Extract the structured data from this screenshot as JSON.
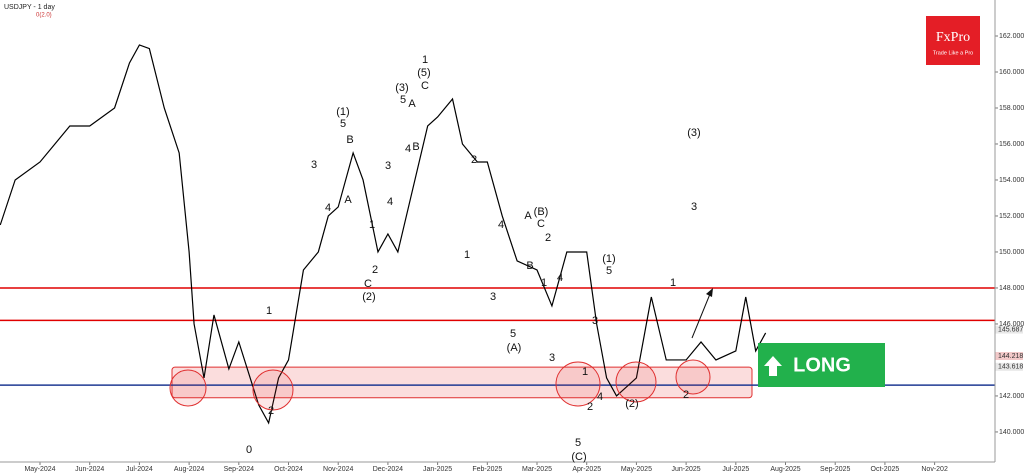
{
  "header": {
    "symbol": "USDJPY - 1 day",
    "indicator": "0(2.0)"
  },
  "logo": {
    "brand": "FxPro",
    "tagline": "Trade Like a Pro"
  },
  "signal": "LONG",
  "annotations": [
    "(1)",
    "5",
    "B",
    "3",
    "A",
    "4",
    "C",
    "(2)",
    "2",
    "1",
    "3",
    "4",
    "1",
    "(5)",
    "C",
    "(3)",
    "5",
    "A",
    "B",
    "4",
    "2",
    "4",
    "(B)",
    "C",
    "2",
    "A",
    "B",
    "3",
    "5",
    "(A)",
    "1",
    "1",
    "4",
    "3",
    "(1)",
    "5",
    "3",
    "1",
    "2",
    "4",
    "5",
    "(C)",
    "(2)",
    "1",
    "2",
    "(3)",
    "3",
    "1",
    "2",
    "0"
  ],
  "chart_data": {
    "type": "line",
    "color": "#000000",
    "x": [
      -0.8,
      -0.5,
      0,
      0.3,
      0.6,
      1.0,
      1.5,
      1.8,
      2.0,
      2.2,
      2.5,
      2.8,
      3.0,
      3.1,
      3.3,
      3.5,
      3.8,
      4.0,
      4.4,
      4.6,
      4.8,
      5.0,
      5.3,
      5.6,
      5.8,
      6.0,
      6.3,
      6.5,
      6.8,
      7.0,
      7.2,
      7.5,
      7.8,
      8.0,
      8.3,
      8.5,
      8.8,
      9.0,
      9.3,
      9.6,
      10.0,
      10.3,
      10.6,
      11.0,
      11.2,
      11.4,
      11.6,
      12.0,
      12.3,
      12.6,
      13.0,
      13.3,
      13.6,
      14.0,
      14.2,
      14.4,
      14.6
    ],
    "values": [
      151.5,
      154,
      155,
      156,
      157,
      157,
      158,
      160.5,
      161.5,
      161.3,
      158,
      155.5,
      150,
      146,
      143,
      146.5,
      143.5,
      145,
      141.5,
      140.5,
      143,
      144,
      149,
      150,
      152,
      152.5,
      155.5,
      154,
      150,
      151,
      150,
      153.5,
      157,
      157.5,
      158.5,
      156,
      155,
      155,
      152,
      149.5,
      149,
      147,
      150,
      150,
      146,
      143,
      142,
      143,
      147.5,
      144,
      144,
      145,
      144,
      144.5,
      147.5,
      144.5,
      145.5
    ],
    "xlim": [
      -0.805,
      19.215
    ],
    "xticks": [
      {
        "value": 0,
        "label": "May-2024"
      },
      {
        "value": 1,
        "label": "Jun-2024"
      },
      {
        "value": 2,
        "label": "Jul-2024"
      },
      {
        "value": 3,
        "label": "Aug-2024"
      },
      {
        "value": 4,
        "label": "Sep-2024"
      },
      {
        "value": 5,
        "label": "Oct-2024"
      },
      {
        "value": 6,
        "label": "Nov-2024"
      },
      {
        "value": 7,
        "label": "Dec-2024"
      },
      {
        "value": 8,
        "label": "Jan-2025"
      },
      {
        "value": 9,
        "label": "Feb-2025"
      },
      {
        "value": 10,
        "label": "Mar-2025"
      },
      {
        "value": 11,
        "label": "Apr-2025"
      },
      {
        "value": 12,
        "label": "May-2025"
      },
      {
        "value": 13,
        "label": "Jun-2025"
      },
      {
        "value": 14,
        "label": "Jul-2025"
      },
      {
        "value": 15,
        "label": "Aug-2025"
      },
      {
        "value": 16,
        "label": "Sep-2025"
      },
      {
        "value": 17,
        "label": "Oct-2025"
      },
      {
        "value": 18,
        "label": "Nov-202"
      }
    ],
    "ylim": [
      138.33,
      164
    ],
    "yticks": [
      {
        "value": 140,
        "label": "140.000"
      },
      {
        "value": 142,
        "label": "142.000"
      },
      {
        "value": 146,
        "label": "146.000"
      },
      {
        "value": 148,
        "label": "148.000"
      },
      {
        "value": 150,
        "label": "150.000"
      },
      {
        "value": 152,
        "label": "152.000"
      },
      {
        "value": 154,
        "label": "154.000"
      },
      {
        "value": 156,
        "label": "156.000"
      },
      {
        "value": 158,
        "label": "158.000"
      },
      {
        "value": 160,
        "label": "160.000"
      },
      {
        "value": 162,
        "label": "162.000"
      }
    ],
    "levels": [
      {
        "value": 148,
        "color": "#e00000"
      },
      {
        "value": 146.2,
        "color": "#e00000"
      },
      {
        "value": 142.6,
        "color": "#1f3a93"
      }
    ],
    "zone": [
      141.9,
      143.6
    ],
    "price_tags": [
      145.687,
      144.218,
      143.618
    ]
  }
}
